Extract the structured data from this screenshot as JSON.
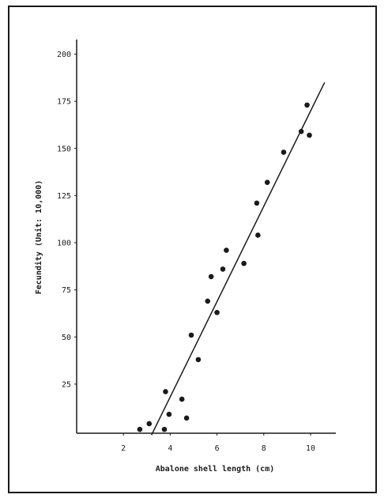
{
  "chart_data": {
    "type": "scatter",
    "xlabel": "Abalone shell length (cm)",
    "ylabel": "Fecundity (Unit: 10,000)",
    "xlim": [
      0,
      11
    ],
    "ylim": [
      -2,
      207
    ],
    "x_ticks": [
      2,
      4,
      6,
      8,
      10
    ],
    "x_tick_labels": [
      "2",
      "4",
      "6",
      "8",
      "10"
    ],
    "y_ticks": [
      25,
      50,
      75,
      100,
      125,
      150,
      175,
      200
    ],
    "y_tick_labels": [
      "25",
      "50",
      "75",
      "100",
      "125",
      "150",
      "175",
      "200"
    ],
    "series": [
      {
        "points": [
          [
            2.7,
            1
          ],
          [
            3.1,
            4
          ],
          [
            3.75,
            1
          ],
          [
            3.8,
            21
          ],
          [
            3.95,
            9
          ],
          [
            4.5,
            17
          ],
          [
            4.7,
            7
          ],
          [
            4.9,
            51
          ],
          [
            5.2,
            38
          ],
          [
            5.6,
            69
          ],
          [
            5.75,
            82
          ],
          [
            6.0,
            63
          ],
          [
            6.25,
            86
          ],
          [
            6.4,
            96
          ],
          [
            7.15,
            89
          ],
          [
            7.7,
            121
          ],
          [
            7.75,
            104
          ],
          [
            8.15,
            132
          ],
          [
            8.85,
            148
          ],
          [
            9.6,
            159
          ],
          [
            9.85,
            173
          ],
          [
            9.95,
            157
          ]
        ]
      }
    ],
    "fit_line": [
      [
        3.2,
        -2
      ],
      [
        10.6,
        185
      ]
    ],
    "grid": false,
    "colors": {
      "ink": "#1a1a1a",
      "frame": "#1a1a1a"
    }
  }
}
